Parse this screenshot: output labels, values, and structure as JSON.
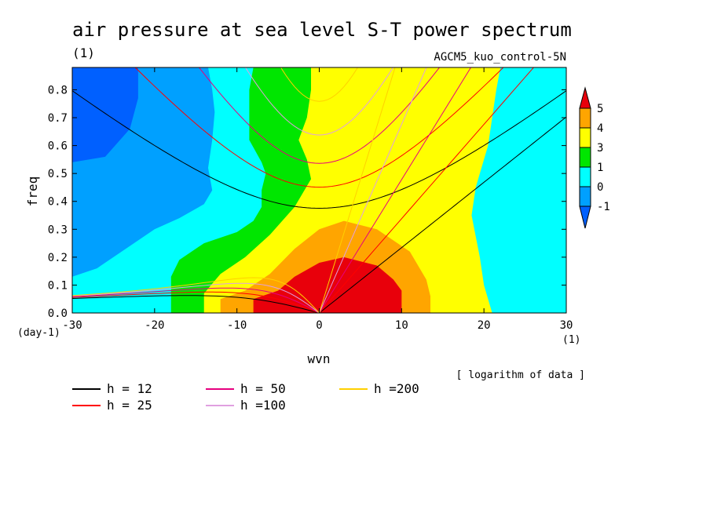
{
  "chart_data": {
    "type": "heatmap",
    "title": "air pressure at sea level S-T power spectrum",
    "subtitle_left": "(1)",
    "subtitle_right": "AGCM5_kuo_control-5N",
    "xlabel": "wvn",
    "ylabel": "freq",
    "x_unit": "(1)",
    "y_unit": "(day-1)",
    "note": "[ logarithm of data ]",
    "xlim": [
      -30,
      30
    ],
    "ylim": [
      0,
      0.88
    ],
    "x_ticks": [
      -30,
      -20,
      -10,
      0,
      10,
      20,
      30
    ],
    "x_tick_labels": [
      "-30",
      "-20",
      "-10",
      "0",
      "10",
      "20",
      "30"
    ],
    "y_ticks": [
      0,
      0.1,
      0.2,
      0.3,
      0.4,
      0.5,
      0.6,
      0.7,
      0.8
    ],
    "y_tick_labels": [
      "0.0",
      "0.1",
      "0.2",
      "0.3",
      "0.4",
      "0.5",
      "0.6",
      "0.7",
      "0.8"
    ],
    "colorbar": {
      "labels": [
        "5",
        "4",
        "3",
        "1",
        "0",
        "-1"
      ],
      "colors": [
        "#e8000b",
        "#ffa500",
        "#ffff00",
        "#00e600",
        "#00ffff",
        "#00a0ff",
        "#0060ff"
      ]
    },
    "contour_regions": [
      {
        "level": "<-1",
        "color": "#0060ff",
        "polygon": [
          [
            -30,
            0.54
          ],
          [
            -26,
            0.56
          ],
          [
            -23,
            0.66
          ],
          [
            -22,
            0.77
          ],
          [
            -22,
            0.88
          ],
          [
            -30,
            0.88
          ]
        ]
      },
      {
        "level": "0",
        "color": "#00ffff",
        "polygon": [
          [
            -30,
            0.13
          ],
          [
            -27,
            0.16
          ],
          [
            -23,
            0.24
          ],
          [
            -20,
            0.3
          ],
          [
            -17,
            0.34
          ],
          [
            -14,
            0.39
          ],
          [
            -13,
            0.44
          ],
          [
            -13.5,
            0.52
          ],
          [
            -13,
            0.62
          ],
          [
            -12.7,
            0.72
          ],
          [
            -13,
            0.8
          ],
          [
            -13.5,
            0.88
          ],
          [
            30,
            0.88
          ],
          [
            30,
            0.0
          ],
          [
            -30,
            0.0
          ]
        ]
      },
      {
        "level": "1",
        "color": "#00e600",
        "polygon": [
          [
            -18,
            0.0
          ],
          [
            -18,
            0.13
          ],
          [
            -17,
            0.19
          ],
          [
            -14,
            0.25
          ],
          [
            -10,
            0.29
          ],
          [
            -8,
            0.33
          ],
          [
            -7,
            0.38
          ],
          [
            -7,
            0.44
          ],
          [
            -6.5,
            0.5
          ],
          [
            -7,
            0.54
          ],
          [
            -8.5,
            0.62
          ],
          [
            -8.5,
            0.7
          ],
          [
            -8.5,
            0.8
          ],
          [
            -8,
            0.88
          ],
          [
            13.5,
            0.88
          ],
          [
            13,
            0.8
          ],
          [
            13,
            0.7
          ],
          [
            12.5,
            0.62
          ],
          [
            12.5,
            0.55
          ],
          [
            13,
            0.5
          ],
          [
            14,
            0.45
          ],
          [
            15,
            0.3
          ],
          [
            15,
            0.0
          ]
        ]
      },
      {
        "level": "3",
        "color": "#ffff00",
        "polygon": [
          [
            -14,
            0.0
          ],
          [
            -14,
            0.07
          ],
          [
            -12,
            0.14
          ],
          [
            -9,
            0.2
          ],
          [
            -6,
            0.28
          ],
          [
            -3,
            0.38
          ],
          [
            -1,
            0.48
          ],
          [
            -1.5,
            0.55
          ],
          [
            -2.5,
            0.62
          ],
          [
            -1.5,
            0.7
          ],
          [
            -1,
            0.8
          ],
          [
            -1,
            0.88
          ],
          [
            22,
            0.88
          ],
          [
            21.5,
            0.8
          ],
          [
            21,
            0.7
          ],
          [
            20.5,
            0.6
          ],
          [
            19.5,
            0.5
          ],
          [
            19,
            0.45
          ],
          [
            18.5,
            0.35
          ],
          [
            19.5,
            0.2
          ],
          [
            20,
            0.1
          ],
          [
            21,
            0.0
          ]
        ]
      },
      {
        "level": "4",
        "color": "#ffa500",
        "polygon": [
          [
            -12,
            0.0
          ],
          [
            -12,
            0.05
          ],
          [
            -9,
            0.08
          ],
          [
            -6,
            0.14
          ],
          [
            -3,
            0.23
          ],
          [
            0,
            0.3
          ],
          [
            3,
            0.33
          ],
          [
            7,
            0.3
          ],
          [
            11,
            0.22
          ],
          [
            13,
            0.12
          ],
          [
            13.5,
            0.06
          ],
          [
            13.5,
            0.0
          ]
        ]
      },
      {
        "level": "5",
        "color": "#e8000b",
        "polygon": [
          [
            -8,
            0.0
          ],
          [
            -8,
            0.05
          ],
          [
            -5,
            0.08
          ],
          [
            -3,
            0.13
          ],
          [
            0,
            0.18
          ],
          [
            3,
            0.2
          ],
          [
            7,
            0.17
          ],
          [
            9,
            0.12
          ],
          [
            10,
            0.08
          ],
          [
            10,
            0.0
          ]
        ]
      }
    ],
    "dispersion_curves": [
      {
        "name": "h = 12",
        "color": "#000000"
      },
      {
        "name": "h = 25",
        "color": "#ff0000"
      },
      {
        "name": "h = 50",
        "color": "#e6007e"
      },
      {
        "name": "h =100",
        "color": "#e0a0e0"
      },
      {
        "name": "h =200",
        "color": "#ffd000"
      }
    ],
    "legend": [
      {
        "label": "h = 12",
        "color": "#000000"
      },
      {
        "label": "h = 50",
        "color": "#e6007e"
      },
      {
        "label": "h =200",
        "color": "#ffd000"
      },
      {
        "label": "h = 25",
        "color": "#ff0000"
      },
      {
        "label": "h =100",
        "color": "#e0a0e0"
      }
    ],
    "grid": false
  }
}
